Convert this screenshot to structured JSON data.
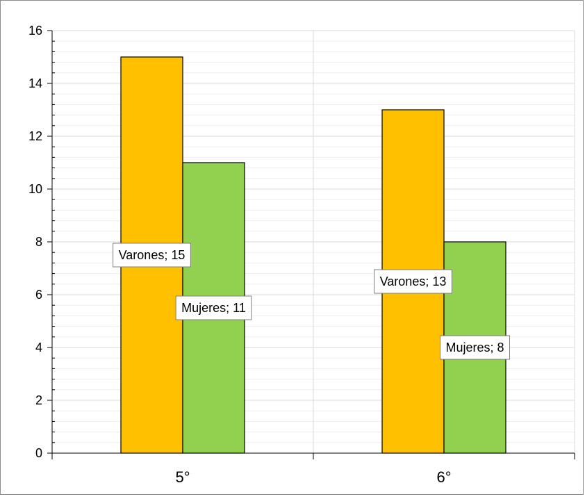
{
  "chart_data": {
    "type": "bar",
    "categories": [
      "5°",
      "6°"
    ],
    "series": [
      {
        "name": "Varones",
        "values": [
          15,
          13
        ],
        "color": "#FFC000"
      },
      {
        "name": "Mujeres",
        "values": [
          11,
          8
        ],
        "color": "#92D050"
      }
    ],
    "ylim": [
      0,
      16
    ],
    "y_major_ticks": [
      0,
      2,
      4,
      6,
      8,
      10,
      12,
      14,
      16
    ],
    "y_tick_labels": [
      "0",
      "2",
      "4",
      "6",
      "8",
      "10",
      "12",
      "14",
      "16"
    ],
    "y_minor_step": 0.4,
    "data_labels": [
      [
        "Varones; 15",
        "Varones; 13"
      ],
      [
        "Mujeres; 11",
        "Mujeres; 8"
      ]
    ],
    "grid": true,
    "title": "",
    "xlabel": "",
    "ylabel": ""
  },
  "colors": {
    "grid_major": "#d9d9d9",
    "grid_minor": "#eeeeee",
    "axis": "#000000",
    "bar_outline": "#000000",
    "label_border": "#7f7f7f",
    "text": "#000000"
  }
}
